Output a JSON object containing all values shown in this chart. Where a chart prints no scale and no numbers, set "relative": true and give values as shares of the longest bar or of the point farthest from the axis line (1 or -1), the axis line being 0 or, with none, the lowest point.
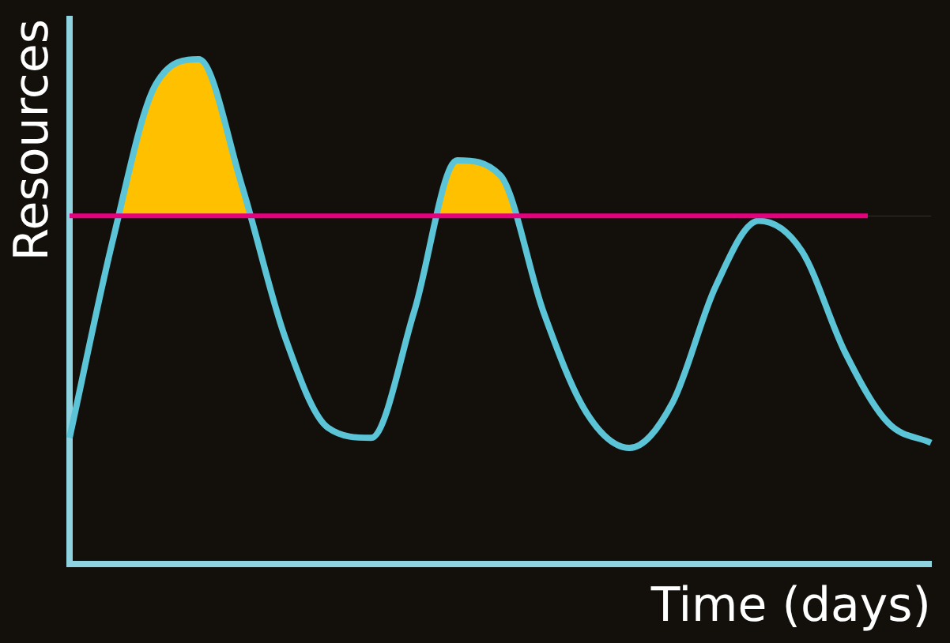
{
  "chart_data": {
    "type": "line",
    "relative": true,
    "xlabel": "Time (days)",
    "ylabel": "Resources",
    "categories": [
      null,
      null,
      null,
      null,
      null,
      null,
      null,
      null,
      null,
      null,
      null,
      null,
      null,
      null,
      null,
      null,
      null,
      null,
      null,
      null,
      null
    ],
    "series": [
      {
        "color": "#5bc4d6",
        "values": [
          0.25,
          0.64,
          0.95,
          1.0,
          0.75,
          0.45,
          0.27,
          0.25,
          0.5,
          0.8,
          0.77,
          0.5,
          0.3,
          0.23,
          0.32,
          0.55,
          0.68,
          0.62,
          0.42,
          0.28,
          0.24
        ]
      }
    ],
    "ref_lines": [
      {
        "axis": "y",
        "value": 0.69,
        "color": "#e6007e"
      }
    ],
    "legend": false,
    "marker": "none",
    "line_style": "solid"
  }
}
